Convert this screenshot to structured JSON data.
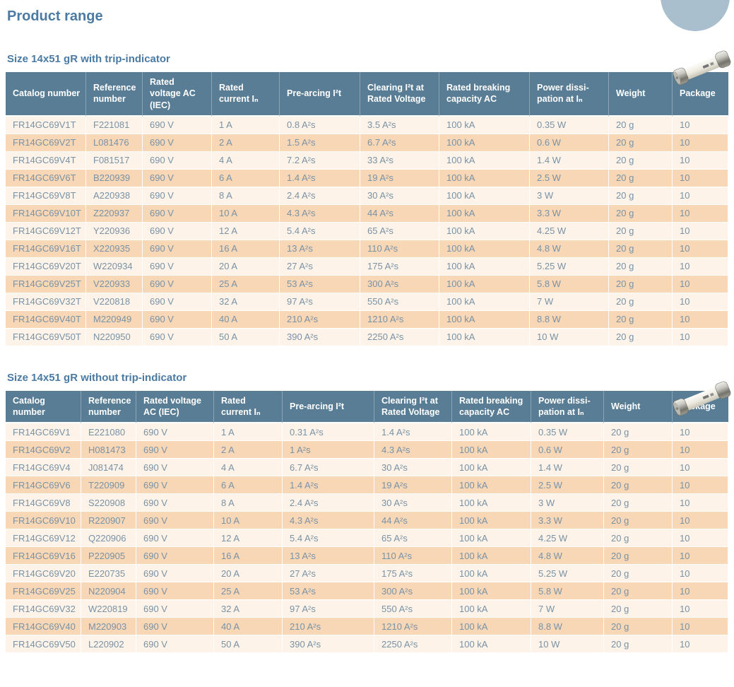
{
  "page": {
    "title": "Product range"
  },
  "colors": {
    "header_bg": "#587d95",
    "row_light": "#fdf3e8",
    "row_shaded": "#f8d7b7",
    "cell_text": "#7892a6",
    "title_text": "#4b7aa2",
    "decor_circle": "#a9bfcd"
  },
  "icons": [
    {
      "name": "fuse-photo",
      "description": "cylindrical cartridge fuse with silver end caps"
    },
    {
      "name": "decorative-circle",
      "description": "light blue circle cropped at top edge"
    }
  ],
  "tables": [
    {
      "title": "Size 14x51 gR with trip-indicator",
      "columns": [
        "Catalog number",
        "Reference number",
        "Rated voltage AC (IEC)",
        "Rated current Iₙ",
        "Pre-arcing I²t",
        "Clearing I²t at Rated Voltage",
        "Rated breaking capacity AC",
        "Power dissi-pation at Iₙ",
        "Weight",
        "Package"
      ],
      "rows": [
        [
          "FR14GC69V1T",
          "F221081",
          "690 V",
          "1 A",
          "0.8 A²s",
          "3.5 A²s",
          "100 kA",
          "0.35 W",
          "20 g",
          "10"
        ],
        [
          "FR14GC69V2T",
          "L081476",
          "690 V",
          "2 A",
          "1.5 A²s",
          "6.7 A²s",
          "100 kA",
          "0.6 W",
          "20 g",
          "10"
        ],
        [
          "FR14GC69V4T",
          "F081517",
          "690 V",
          "4 A",
          "7.2 A²s",
          "33 A²s",
          "100 kA",
          "1.4 W",
          "20 g",
          "10"
        ],
        [
          "FR14GC69V6T",
          "B220939",
          "690 V",
          "6 A",
          "1.4 A²s",
          "19 A²s",
          "100 kA",
          "2.5 W",
          "20 g",
          "10"
        ],
        [
          "FR14GC69V8T",
          "A220938",
          "690 V",
          "8 A",
          "2.4 A²s",
          "30 A²s",
          "100 kA",
          "3 W",
          "20 g",
          "10"
        ],
        [
          "FR14GC69V10T",
          "Z220937",
          "690 V",
          "10 A",
          "4.3 A²s",
          "44 A²s",
          "100 kA",
          "3.3 W",
          "20 g",
          "10"
        ],
        [
          "FR14GC69V12T",
          "Y220936",
          "690 V",
          "12 A",
          "5.4 A²s",
          "65 A²s",
          "100 kA",
          "4.25 W",
          "20 g",
          "10"
        ],
        [
          "FR14GC69V16T",
          "X220935",
          "690 V",
          "16 A",
          "13 A²s",
          "110 A²s",
          "100 kA",
          "4.8 W",
          "20 g",
          "10"
        ],
        [
          "FR14GC69V20T",
          "W220934",
          "690 V",
          "20 A",
          "27 A²s",
          "175 A²s",
          "100 kA",
          "5.25 W",
          "20 g",
          "10"
        ],
        [
          "FR14GC69V25T",
          "V220933",
          "690 V",
          "25 A",
          "53 A²s",
          "300 A²s",
          "100 kA",
          "5.8 W",
          "20 g",
          "10"
        ],
        [
          "FR14GC69V32T",
          "V220818",
          "690 V",
          "32 A",
          "97 A²s",
          "550 A²s",
          "100 kA",
          "7 W",
          "20 g",
          "10"
        ],
        [
          "FR14GC69V40T",
          "M220949",
          "690 V",
          "40 A",
          "210 A²s",
          "1210 A²s",
          "100 kA",
          "8.8 W",
          "20 g",
          "10"
        ],
        [
          "FR14GC69V50T",
          "N220950",
          "690 V",
          "50 A",
          "390 A²s",
          "2250 A²s",
          "100 kA",
          "10 W",
          "20 g",
          "10"
        ]
      ]
    },
    {
      "title": "Size 14x51 gR without trip-indicator",
      "columns": [
        "Catalog number",
        "Reference number",
        "Rated voltage AC (IEC)",
        "Rated current Iₙ",
        "Pre-arcing I²t",
        "Clearing I²t at Rated Voltage",
        "Rated breaking capacity AC",
        "Power dissi-pation at Iₙ",
        "Weight",
        "Package"
      ],
      "rows": [
        [
          "FR14GC69V1",
          "E221080",
          "690 V",
          "1 A",
          "0.31 A²s",
          "1.4 A²s",
          "100 kA",
          "0.35 W",
          "20 g",
          "10"
        ],
        [
          "FR14GC69V2",
          "H081473",
          "690 V",
          "2 A",
          "1 A²s",
          "4.3 A²s",
          "100 kA",
          "0.6 W",
          "20 g",
          "10"
        ],
        [
          "FR14GC69V4",
          "J081474",
          "690 V",
          "4 A",
          "6.7 A²s",
          "30 A²s",
          "100 kA",
          "1.4 W",
          "20 g",
          "10"
        ],
        [
          "FR14GC69V6",
          "T220909",
          "690 V",
          "6 A",
          "1.4 A²s",
          "19 A²s",
          "100 kA",
          "2.5 W",
          "20 g",
          "10"
        ],
        [
          "FR14GC69V8",
          "S220908",
          "690 V",
          "8 A",
          "2.4 A²s",
          "30 A²s",
          "100 kA",
          "3 W",
          "20 g",
          "10"
        ],
        [
          "FR14GC69V10",
          "R220907",
          "690 V",
          "10 A",
          "4.3 A²s",
          "44 A²s",
          "100 kA",
          "3.3 W",
          "20 g",
          "10"
        ],
        [
          "FR14GC69V12",
          "Q220906",
          "690 V",
          "12 A",
          "5.4 A²s",
          "65 A²s",
          "100 kA",
          "4.25 W",
          "20 g",
          "10"
        ],
        [
          "FR14GC69V16",
          "P220905",
          "690 V",
          "16 A",
          "13 A²s",
          "110 A²s",
          "100 kA",
          "4.8 W",
          "20 g",
          "10"
        ],
        [
          "FR14GC69V20",
          "E220735",
          "690 V",
          "20 A",
          "27 A²s",
          "175 A²s",
          "100 kA",
          "5.25 W",
          "20 g",
          "10"
        ],
        [
          "FR14GC69V25",
          "N220904",
          "690 V",
          "25 A",
          "53 A²s",
          "300 A²s",
          "100 kA",
          "5.8 W",
          "20 g",
          "10"
        ],
        [
          "FR14GC69V32",
          "W220819",
          "690 V",
          "32 A",
          "97 A²s",
          "550 A²s",
          "100 kA",
          "7 W",
          "20 g",
          "10"
        ],
        [
          "FR14GC69V40",
          "M220903",
          "690 V",
          "40 A",
          "210 A²s",
          "1210 A²s",
          "100 kA",
          "8.8 W",
          "20 g",
          "10"
        ],
        [
          "FR14GC69V50",
          "L220902",
          "690 V",
          "50 A",
          "390 A²s",
          "2250 A²s",
          "100 kA",
          "10 W",
          "20 g",
          "10"
        ]
      ]
    }
  ]
}
